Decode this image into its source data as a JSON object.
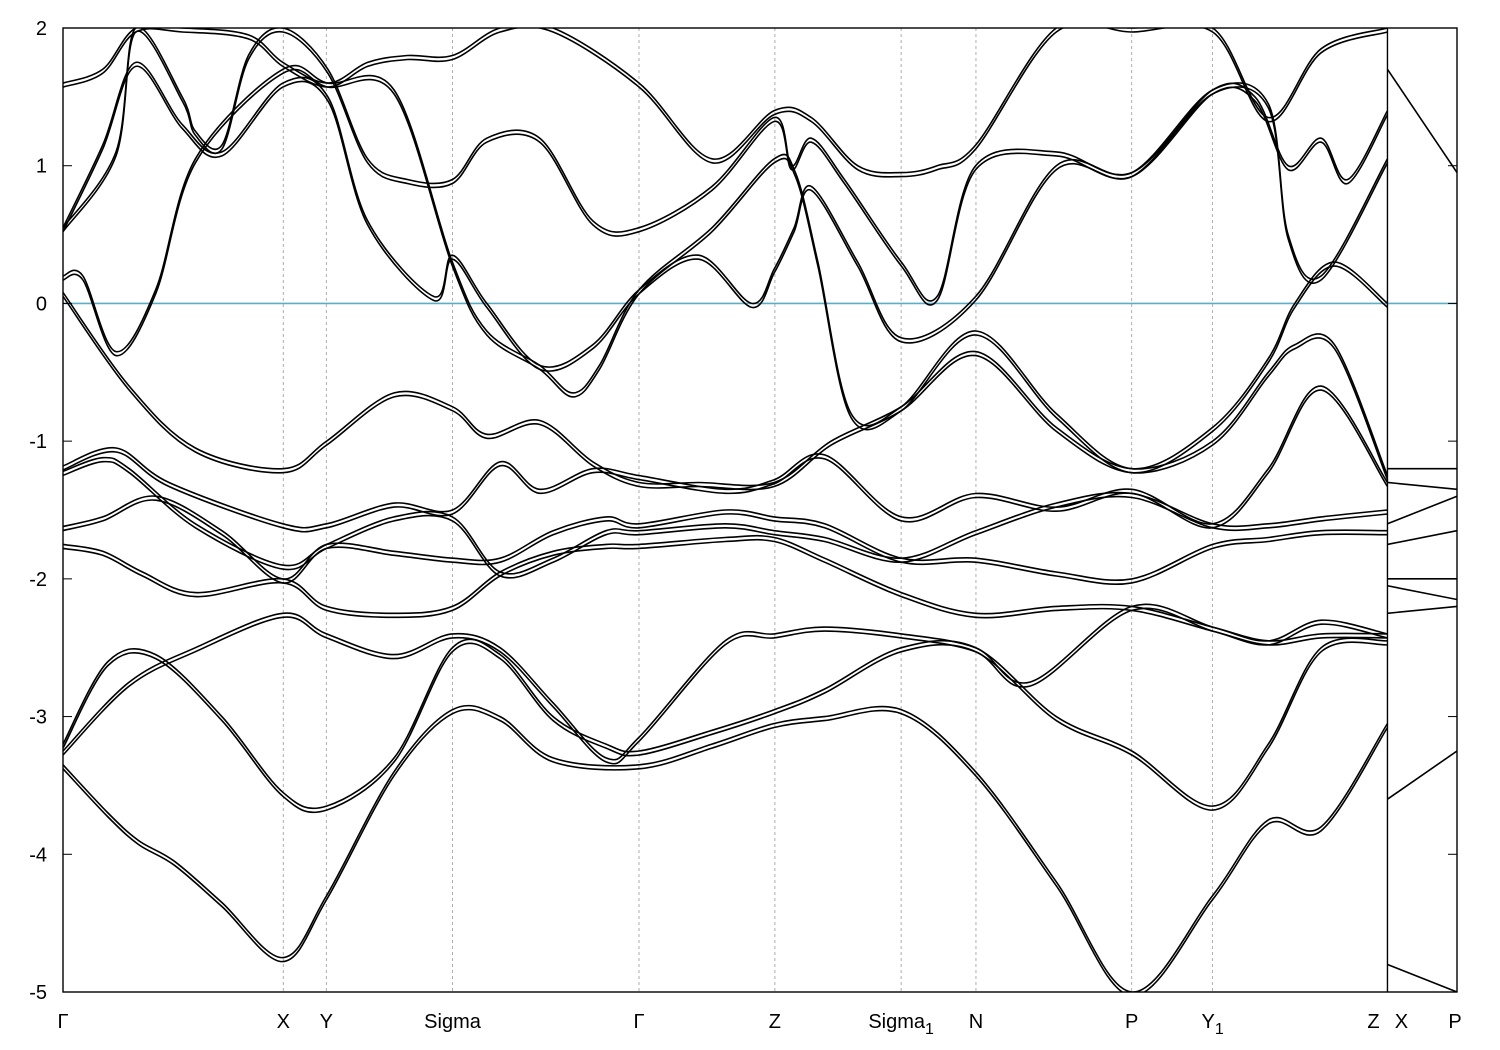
{
  "chart_data": {
    "type": "line",
    "title": "",
    "xlabel": "",
    "ylabel": "",
    "ylim": [
      -5,
      2
    ],
    "yticks": [
      2,
      1,
      0,
      -1,
      -2,
      -3,
      -4,
      -5
    ],
    "grid": false,
    "legend": "none",
    "fermi_level": 0,
    "fermi_color": "#5aaec8",
    "band_color": "#000000",
    "kpath": [
      {
        "label": "Γ",
        "sub": "",
        "x": 0.0
      },
      {
        "label": "X",
        "sub": "",
        "x": 0.1663
      },
      {
        "label": "Y",
        "sub": "",
        "x": 0.1988
      },
      {
        "label": "Sigma",
        "sub": "",
        "x": 0.2941
      },
      {
        "label": "Γ",
        "sub": "",
        "x": 0.4349
      },
      {
        "label": "Z",
        "sub": "",
        "x": 0.5375
      },
      {
        "label": "Sigma",
        "sub": "1",
        "x": 0.6328
      },
      {
        "label": "N",
        "sub": "",
        "x": 0.6893
      },
      {
        "label": "P",
        "sub": "",
        "x": 0.8069
      },
      {
        "label": "Y",
        "sub": "1",
        "x": 0.868
      },
      {
        "label": "Z",
        "sub": "",
        "x": 1.0
      },
      {
        "label": "X",
        "sub": "",
        "x": 1.0
      },
      {
        "label": "P",
        "sub": "",
        "x": 1.0525
      }
    ],
    "break_after": 10,
    "series": [
      {
        "x": [
          0,
          0.034,
          0.057,
          0.084,
          0.12,
          0.166,
          0.199,
          0.25,
          0.294,
          0.33,
          0.37,
          0.435,
          0.49,
          0.537,
          0.575,
          0.633,
          0.689,
          0.75,
          0.807,
          0.868,
          0.91,
          0.95,
          1.0
        ],
        "y": [
          -3.35,
          -3.7,
          -3.9,
          -4.05,
          -4.35,
          -4.75,
          -4.3,
          -3.4,
          -2.95,
          -3.0,
          -3.3,
          -3.35,
          -3.2,
          -3.05,
          -3.0,
          -2.95,
          -3.4,
          -4.2,
          -5.0,
          -4.3,
          -3.75,
          -3.8,
          -3.05
        ]
      },
      {
        "x": [
          0,
          0.034,
          0.07,
          0.12,
          0.166,
          0.199,
          0.25,
          0.294,
          0.33,
          0.37,
          0.41,
          0.435,
          0.49,
          0.537,
          0.575,
          0.633,
          0.689,
          0.75,
          0.807,
          0.868,
          0.91,
          0.95,
          1.0
        ],
        "y": [
          -3.2,
          -2.6,
          -2.55,
          -3.0,
          -3.55,
          -3.65,
          -3.3,
          -2.5,
          -2.55,
          -3.0,
          -3.2,
          -3.25,
          -3.1,
          -2.95,
          -2.8,
          -2.5,
          -2.5,
          -3.0,
          -3.25,
          -3.65,
          -3.2,
          -2.5,
          -2.45
        ]
      },
      {
        "x": [
          0,
          0.05,
          0.1,
          0.166,
          0.199,
          0.25,
          0.294,
          0.33,
          0.37,
          0.41,
          0.435,
          0.5,
          0.537,
          0.575,
          0.633,
          0.689,
          0.73,
          0.807,
          0.868,
          0.91,
          0.95,
          1.0
        ],
        "y": [
          -3.25,
          -2.75,
          -2.5,
          -2.25,
          -2.4,
          -2.55,
          -2.4,
          -2.5,
          -2.9,
          -3.3,
          -3.15,
          -2.45,
          -2.4,
          -2.35,
          -2.4,
          -2.5,
          -2.75,
          -2.2,
          -2.35,
          -2.45,
          -2.3,
          -2.4
        ]
      },
      {
        "x": [
          0,
          0.03,
          0.06,
          0.1,
          0.166,
          0.199,
          0.25,
          0.294,
          0.33,
          0.37,
          0.41,
          0.435,
          0.5,
          0.537,
          0.575,
          0.633,
          0.689,
          0.75,
          0.807,
          0.868,
          0.91,
          0.95,
          1.0
        ],
        "y": [
          -1.75,
          -1.8,
          -1.95,
          -2.1,
          -2.0,
          -2.2,
          -2.25,
          -2.2,
          -1.95,
          -1.8,
          -1.75,
          -1.75,
          -1.7,
          -1.7,
          -1.85,
          -2.1,
          -2.25,
          -2.2,
          -2.2,
          -2.35,
          -2.45,
          -2.4,
          -2.4
        ]
      },
      {
        "x": [
          0,
          0.03,
          0.07,
          0.12,
          0.166,
          0.199,
          0.25,
          0.294,
          0.33,
          0.37,
          0.41,
          0.435,
          0.5,
          0.537,
          0.575,
          0.633,
          0.689,
          0.75,
          0.807,
          0.868,
          0.91,
          0.95,
          1.0
        ],
        "y": [
          -1.62,
          -1.55,
          -1.4,
          -1.65,
          -2.0,
          -1.75,
          -1.8,
          -1.85,
          -1.85,
          -1.65,
          -1.55,
          -1.6,
          -1.5,
          -1.55,
          -1.6,
          -1.85,
          -1.85,
          -1.95,
          -2.0,
          -1.75,
          -1.7,
          -1.65,
          -1.65
        ]
      },
      {
        "x": [
          0,
          0.03,
          0.05,
          0.1,
          0.166,
          0.199,
          0.25,
          0.294,
          0.33,
          0.37,
          0.41,
          0.435,
          0.5,
          0.537,
          0.575,
          0.633,
          0.689,
          0.75,
          0.807,
          0.868,
          0.91,
          0.95,
          1.0
        ],
        "y": [
          -1.22,
          -1.12,
          -1.2,
          -1.6,
          -1.9,
          -1.75,
          -1.55,
          -1.55,
          -1.95,
          -1.85,
          -1.65,
          -1.65,
          -1.6,
          -1.65,
          -1.7,
          -1.85,
          -1.65,
          -1.45,
          -1.38,
          -1.6,
          -1.6,
          -1.55,
          -1.5
        ]
      },
      {
        "x": [
          0,
          0.04,
          0.08,
          0.166,
          0.199,
          0.25,
          0.294,
          0.33,
          0.36,
          0.4,
          0.435,
          0.5,
          0.537,
          0.575,
          0.633,
          0.689,
          0.75,
          0.807,
          0.868,
          0.91,
          0.95,
          1.0
        ],
        "y": [
          -1.18,
          -1.05,
          -1.3,
          -1.6,
          -1.6,
          -1.45,
          -1.5,
          -1.15,
          -1.35,
          -1.2,
          -1.25,
          -1.35,
          -1.28,
          -1.1,
          -1.55,
          -1.38,
          -1.48,
          -1.35,
          -1.6,
          -1.2,
          -0.6,
          -1.3
        ]
      },
      {
        "x": [
          0,
          0.05,
          0.1,
          0.166,
          0.199,
          0.25,
          0.294,
          0.32,
          0.36,
          0.4,
          0.435,
          0.48,
          0.537,
          0.58,
          0.633,
          0.689,
          0.75,
          0.807,
          0.868,
          0.91,
          0.93,
          0.96,
          1.0
        ],
        "y": [
          0.08,
          -0.6,
          -1.05,
          -1.2,
          -1.0,
          -0.65,
          -0.75,
          -0.95,
          -0.85,
          -1.15,
          -1.3,
          -1.3,
          -1.3,
          -1.0,
          -0.75,
          -0.35,
          -0.9,
          -1.2,
          -1.0,
          -0.5,
          -0.3,
          -0.3,
          -1.25
        ]
      },
      {
        "x": [
          0,
          0.015,
          0.04,
          0.07,
          0.1,
          0.166,
          0.2,
          0.25,
          0.294,
          0.32,
          0.36,
          0.385,
          0.405,
          0.435,
          0.49,
          0.537,
          0.553,
          0.57,
          0.595,
          0.633,
          0.689,
          0.75,
          0.807,
          0.868,
          0.91,
          0.93,
          0.96,
          1.0
        ],
        "y": [
          0.2,
          0.2,
          -0.35,
          0.1,
          1.05,
          1.7,
          1.6,
          1.55,
          0.3,
          -0.2,
          -0.45,
          -0.65,
          -0.45,
          0.1,
          0.55,
          1.05,
          0.95,
          0.3,
          -0.8,
          -0.75,
          -0.2,
          -0.8,
          -1.2,
          -0.9,
          -0.4,
          0.0,
          0.3,
          0.0
        ]
      },
      {
        "x": [
          0,
          0.03,
          0.055,
          0.09,
          0.12,
          0.166,
          0.2,
          0.23,
          0.28,
          0.294,
          0.32,
          0.36,
          0.4,
          0.435,
          0.48,
          0.52,
          0.537,
          0.552,
          0.565,
          0.6,
          0.633,
          0.689,
          0.75,
          0.807,
          0.868,
          0.91,
          0.925,
          0.95,
          1.0
        ],
        "y": [
          0.55,
          1.15,
          1.75,
          1.3,
          1.1,
          1.6,
          1.5,
          0.6,
          0.05,
          0.35,
          0.0,
          -0.45,
          -0.3,
          0.1,
          0.35,
          0.0,
          0.25,
          0.55,
          0.85,
          0.3,
          -0.25,
          0.05,
          1.0,
          0.95,
          1.55,
          1.45,
          0.5,
          0.2,
          1.05
        ]
      },
      {
        "x": [
          0,
          0.04,
          0.055,
          0.09,
          0.1,
          0.12,
          0.14,
          0.166,
          0.2,
          0.23,
          0.26,
          0.294,
          0.32,
          0.36,
          0.4,
          0.435,
          0.49,
          0.537,
          0.55,
          0.565,
          0.59,
          0.633,
          0.66,
          0.689,
          0.75,
          0.807,
          0.868,
          0.9,
          0.925,
          0.95,
          0.97,
          1.0
        ],
        "y": [
          0.55,
          1.1,
          2.0,
          1.5,
          1.25,
          1.15,
          1.8,
          2.0,
          1.7,
          1.05,
          0.9,
          0.9,
          1.2,
          1.2,
          0.6,
          0.55,
          0.85,
          1.35,
          1.0,
          1.2,
          0.9,
          0.3,
          0.05,
          1.0,
          1.1,
          0.95,
          1.55,
          1.5,
          1.0,
          1.2,
          0.9,
          1.4
        ]
      },
      {
        "x": [
          0,
          0.03,
          0.055,
          0.09,
          0.14,
          0.166,
          0.2,
          0.23,
          0.26,
          0.294,
          0.33,
          0.37,
          0.435,
          0.49,
          0.537,
          0.565,
          0.6,
          0.633,
          0.66,
          0.689,
          0.75,
          0.807,
          0.868,
          0.91,
          0.95,
          1.0
        ],
        "y": [
          1.6,
          1.7,
          2.0,
          2.0,
          1.95,
          1.75,
          1.6,
          1.75,
          1.8,
          1.8,
          2.0,
          2.0,
          1.6,
          1.05,
          1.4,
          1.35,
          1.0,
          0.95,
          1.0,
          1.15,
          2.0,
          2.0,
          2.0,
          1.35,
          1.85,
          2.0
        ]
      }
    ],
    "extra_segment": {
      "x": [
        1.0,
        1.0525
      ],
      "series": [
        {
          "y": [
            -4.8,
            -5.0
          ]
        },
        {
          "y": [
            -3.6,
            -3.25
          ]
        },
        {
          "y": [
            -2.25,
            -2.2
          ]
        },
        {
          "y": [
            -2.05,
            -2.15
          ]
        },
        {
          "y": [
            -2.0,
            -2.0
          ]
        },
        {
          "y": [
            -1.75,
            -1.65
          ]
        },
        {
          "y": [
            -1.6,
            -1.4
          ]
        },
        {
          "y": [
            -1.3,
            -1.35
          ]
        },
        {
          "y": [
            -1.2,
            -1.2
          ]
        },
        {
          "y": [
            1.7,
            0.95
          ]
        }
      ]
    }
  }
}
